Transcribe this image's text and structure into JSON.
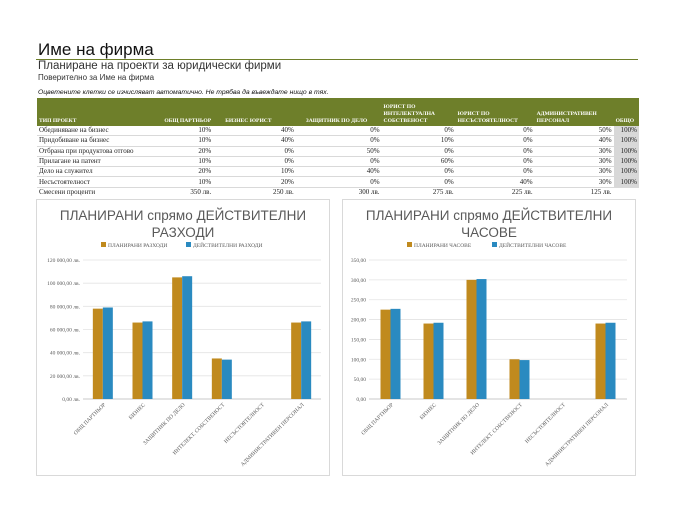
{
  "header": {
    "company": "Име на фирма",
    "subtitle": "Планиране на проекти за юридически фирми",
    "confidential": "Поверително за Име на фирма",
    "note": "Оцветените клетки се изчисляват автоматично. Не трябва да въвеждате нищо в тях."
  },
  "table": {
    "columns": [
      "ТИП ПРОЕКТ",
      "ОБЩ ПАРТНЬОР",
      "БИЗНЕС ЮРИСТ",
      "ЗАЩИТНИК ПО ДЕЛО",
      "ЮРИСТ ПО ИНТЕЛЕКТУАЛНА СОБСТВЕНОСТ",
      "ЮРИСТ ПО НЕСЪСТОЯТЕЛНОСТ",
      "АДМИНИСТРАТИВЕН ПЕРСОНАЛ",
      "ОБЩО"
    ],
    "rows": [
      {
        "type": "Обединяване на бизнес",
        "cells": [
          "10%",
          "40%",
          "0%",
          "0%",
          "0%",
          "50%"
        ],
        "total": "100%"
      },
      {
        "type": "Придобиване на бизнес",
        "cells": [
          "10%",
          "40%",
          "0%",
          "10%",
          "0%",
          "40%"
        ],
        "total": "100%"
      },
      {
        "type": "Отбрана при продуктова отгово",
        "cells": [
          "20%",
          "0%",
          "50%",
          "0%",
          "0%",
          "30%"
        ],
        "total": "100%"
      },
      {
        "type": "Прилагане на патент",
        "cells": [
          "10%",
          "0%",
          "0%",
          "60%",
          "0%",
          "30%"
        ],
        "total": "100%"
      },
      {
        "type": "Дело на служител",
        "cells": [
          "20%",
          "10%",
          "40%",
          "0%",
          "0%",
          "30%"
        ],
        "total": "100%"
      },
      {
        "type": "Несъстоятелност",
        "cells": [
          "10%",
          "20%",
          "0%",
          "0%",
          "40%",
          "30%"
        ],
        "total": "100%"
      }
    ],
    "mixed_label": "Смесени проценти",
    "mixed": [
      "350 лв.",
      "250 лв.",
      "300 лв.",
      "275 лв.",
      "225 лв.",
      "125 лв."
    ]
  },
  "chart_data": [
    {
      "type": "bar",
      "title": "ПЛАНИРАНИ спрямо ДЕЙСТВИТЕЛНИ РАЗХОДИ",
      "title_lines": [
        "ПЛАНИРАНИ спрямо ДЕЙСТВИТЕЛНИ",
        "РАЗХОДИ"
      ],
      "categories": [
        "ОБЩ ПАРТНЬОР",
        "БИЗНЕС",
        "ЗАЩИТНИК ПО ДЕЛО",
        "ИНТЕЛЕКТ. СОБСТВЕНОСТ",
        "НЕСЪСТОЯТЕЛНОСТ",
        "АДМИНИСТРАТИВЕН ПЕРСОНАЛ"
      ],
      "series": [
        {
          "name": "ПЛАНИРАНИ РАЗХОДИ",
          "color": "#c08a1e",
          "values": [
            78000,
            66000,
            105000,
            35000,
            0,
            66000
          ]
        },
        {
          "name": "ДЕЙСТВИТЕЛНИ РАЗХОДИ",
          "color": "#2a8ac0",
          "values": [
            79000,
            67000,
            106000,
            34000,
            0,
            67000
          ]
        }
      ],
      "ylim": [
        0,
        120000
      ],
      "yticks": [
        0,
        20000,
        40000,
        60000,
        80000,
        100000,
        120000
      ],
      "ytick_labels": [
        "0,00 лв.",
        "20 000,00 лв.",
        "40 000,00 лв.",
        "60 000,00 лв.",
        "80 000,00 лв.",
        "100 000,00 лв.",
        "120 000,00 лв."
      ],
      "legend": "top",
      "grid": true
    },
    {
      "type": "bar",
      "title": "ПЛАНИРАНИ спрямо ДЕЙСТВИТЕЛНИ ЧАСОВЕ",
      "title_lines": [
        "ПЛАНИРАНИ спрямо ДЕЙСТВИТЕЛНИ",
        "ЧАСОВЕ"
      ],
      "categories": [
        "ОБЩ ПАРТНЬОР",
        "БИЗНЕС",
        "ЗАЩИТНИК ПО ДЕЛО",
        "ИНТЕЛЕКТ. СОБСТВЕНОСТ",
        "НЕСЪСТОЯТЕЛНОСТ",
        "АДМИНИСТРАТИВЕН ПЕРСОНАЛ"
      ],
      "series": [
        {
          "name": "ПЛАНИРАНИ ЧАСОВЕ",
          "color": "#c08a1e",
          "values": [
            225,
            190,
            300,
            100,
            0,
            190
          ]
        },
        {
          "name": "ДЕЙСТВИТЕЛНИ ЧАСОВЕ",
          "color": "#2a8ac0",
          "values": [
            227,
            192,
            302,
            98,
            0,
            192
          ]
        }
      ],
      "ylim": [
        0,
        350
      ],
      "yticks": [
        0,
        50,
        100,
        150,
        200,
        250,
        300,
        350
      ],
      "ytick_labels": [
        "0,00",
        "50,00",
        "100,00",
        "150,00",
        "200,00",
        "250,00",
        "300,00",
        "350,00"
      ],
      "legend": "top",
      "grid": true
    }
  ]
}
